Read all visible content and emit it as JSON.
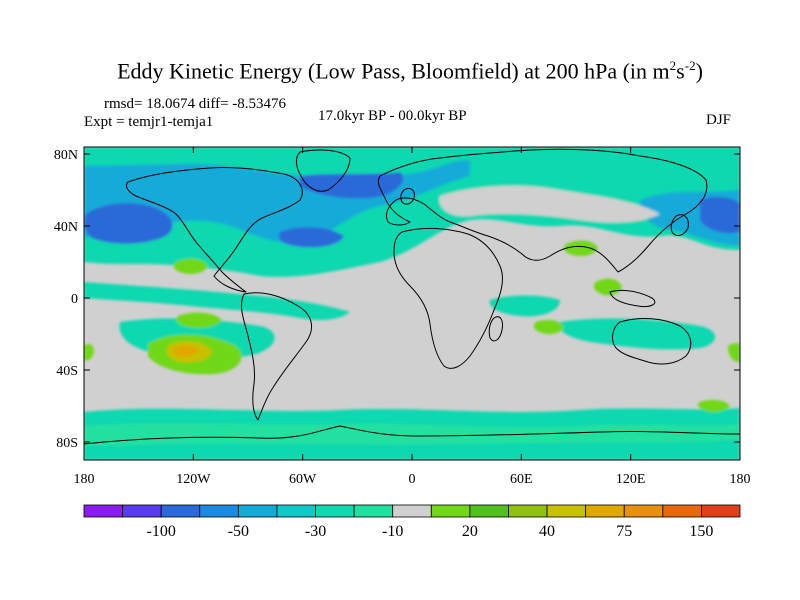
{
  "title": {
    "main": "Eddy Kinetic Energy (Low Pass, Bloomfield) at 200 hPa (in m",
    "sup1": "2",
    "mid": "s",
    "sup2": "-2",
    "end": ")"
  },
  "stats": "rmsd= 18.0674 diff= -8.53476",
  "experiment": "Expt = temjr1-temja1",
  "period": "17.0kyr BP - 00.0kyr BP",
  "season": "DJF",
  "map": {
    "lat_ticks": [
      "80N",
      "40N",
      "0",
      "40S",
      "80S"
    ],
    "lon_ticks": [
      "180",
      "120W",
      "60W",
      "0",
      "60E",
      "120E",
      "180"
    ]
  },
  "colorbar": {
    "labels": [
      "-100",
      "-50",
      "-30",
      "-10",
      "20",
      "40",
      "75",
      "150"
    ],
    "colors": [
      "#8a1cf0",
      "#5a3cf0",
      "#2a6ad8",
      "#1c8ae0",
      "#14aad8",
      "#10c8c8",
      "#10d8b0",
      "#20e0a0",
      "#d0d0d0",
      "#70d818",
      "#50c020",
      "#90c010",
      "#c8c000",
      "#e0a800",
      "#e89010",
      "#e86810",
      "#e04018"
    ]
  }
}
